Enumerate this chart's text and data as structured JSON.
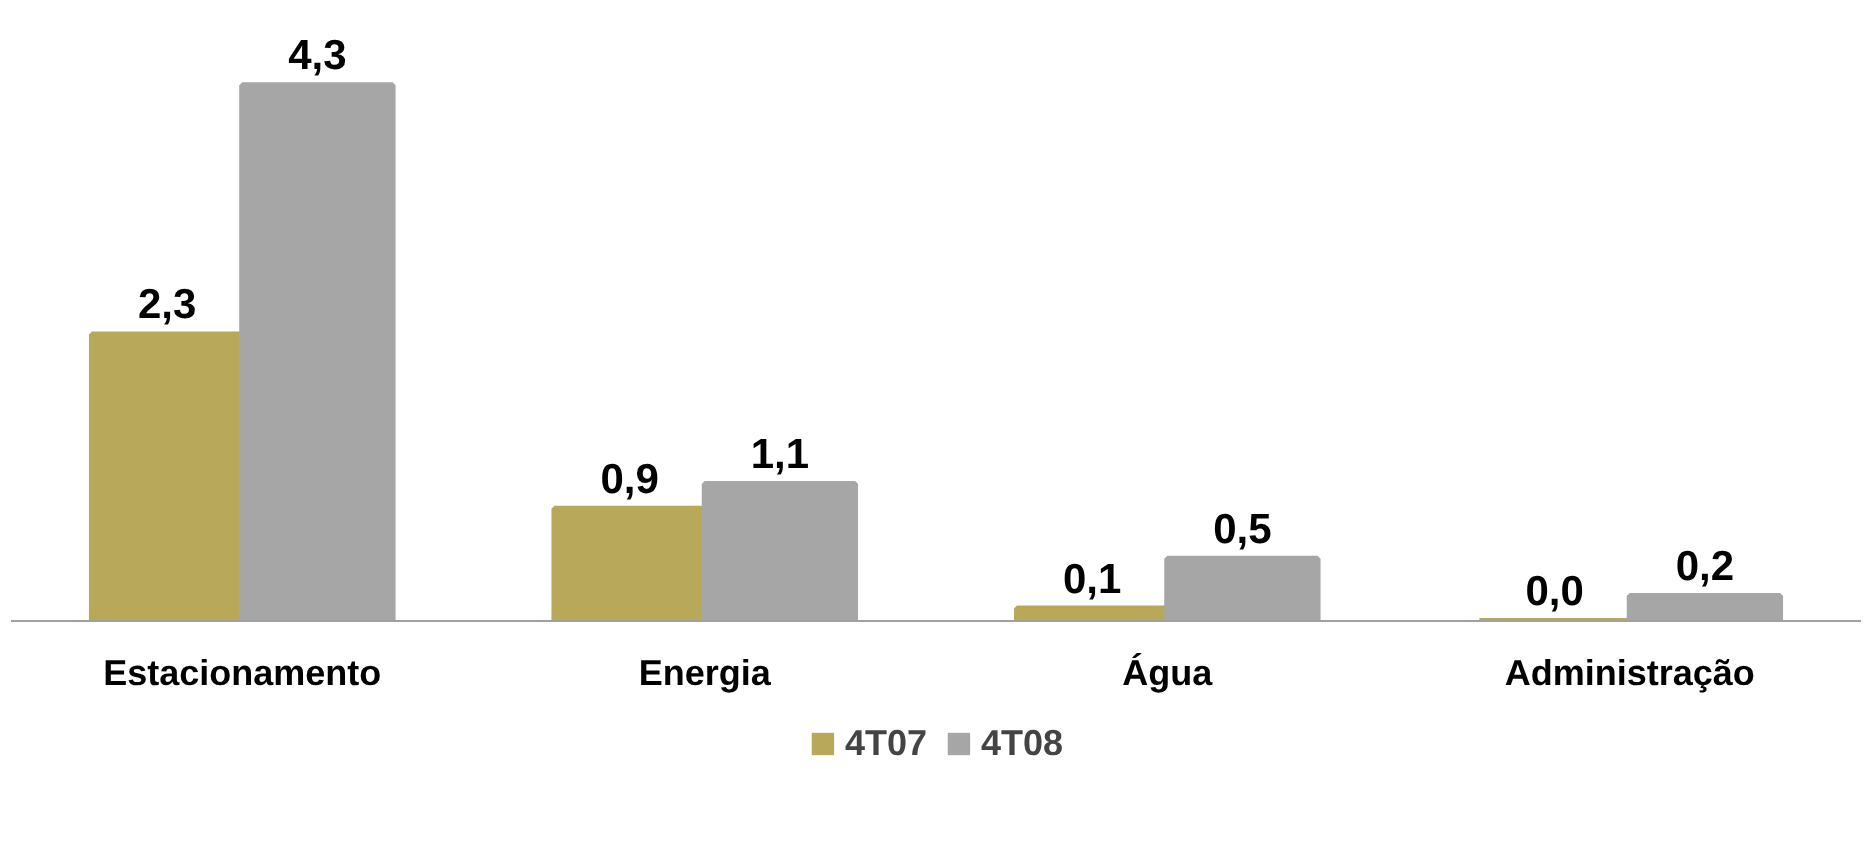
{
  "chart_data": {
    "type": "bar",
    "categories": [
      "Estacionamento",
      "Energia",
      "Água",
      "Administração"
    ],
    "series": [
      {
        "name": "4T07",
        "color": "#b8a95a",
        "values": [
          2.3,
          0.9,
          0.1,
          0.0
        ],
        "value_labels": [
          "2,3",
          "0,9",
          "0,1",
          "0,0"
        ]
      },
      {
        "name": "4T08",
        "color": "#a6a6a6",
        "values": [
          4.3,
          1.1,
          0.5,
          0.2
        ],
        "value_labels": [
          "4,3",
          "1,1",
          "0,5",
          "0,2"
        ]
      }
    ],
    "tick_labels": "x",
    "legend": "bottom"
  }
}
